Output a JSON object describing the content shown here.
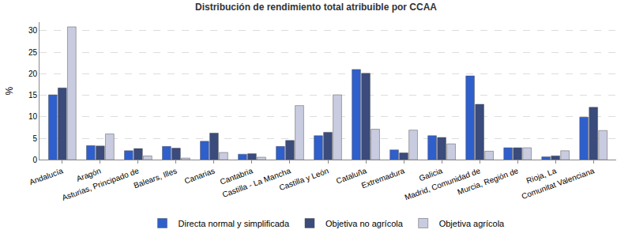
{
  "chart_data": {
    "type": "bar",
    "title": "Distribución de rendimiento total atribuible por CCAA",
    "y_label": "%",
    "categories": [
      "Andalucía",
      "Aragón",
      "Asturias, Principado de",
      "Balears, Illes",
      "Canarias",
      "Cantabria",
      "Castilla - La Mancha",
      "Castilla y León",
      "Cataluña",
      "Extremadura",
      "Galicia",
      "Madrid, Comunidad de",
      "Murcia, Región de",
      "Rioja, La",
      "Comunitat Valenciana"
    ],
    "series": [
      {
        "name": "Directa normal y simplificada",
        "color": "#2f5fcc",
        "values": [
          15.1,
          3.3,
          2.1,
          3.1,
          4.3,
          1.3,
          3.1,
          5.6,
          21.0,
          2.3,
          5.6,
          19.5,
          2.8,
          0.7,
          9.9
        ]
      },
      {
        "name": "Objetiva no agrícola",
        "color": "#3a4b7c",
        "values": [
          16.7,
          3.2,
          2.6,
          2.7,
          6.2,
          1.4,
          4.5,
          6.4,
          20.1,
          1.6,
          5.2,
          12.9,
          2.8,
          0.9,
          12.2
        ]
      },
      {
        "name": "Objetiva agrícola",
        "color": "#c9cce0",
        "values": [
          30.9,
          6.0,
          0.9,
          0.4,
          1.7,
          0.6,
          12.6,
          15.1,
          7.1,
          6.9,
          3.7,
          2.0,
          2.8,
          2.1,
          6.8
        ]
      }
    ],
    "ylim": [
      0,
      32
    ],
    "yticks": [
      0,
      5,
      10,
      15,
      20,
      25,
      30
    ],
    "grid": true,
    "legend": "bottom"
  }
}
